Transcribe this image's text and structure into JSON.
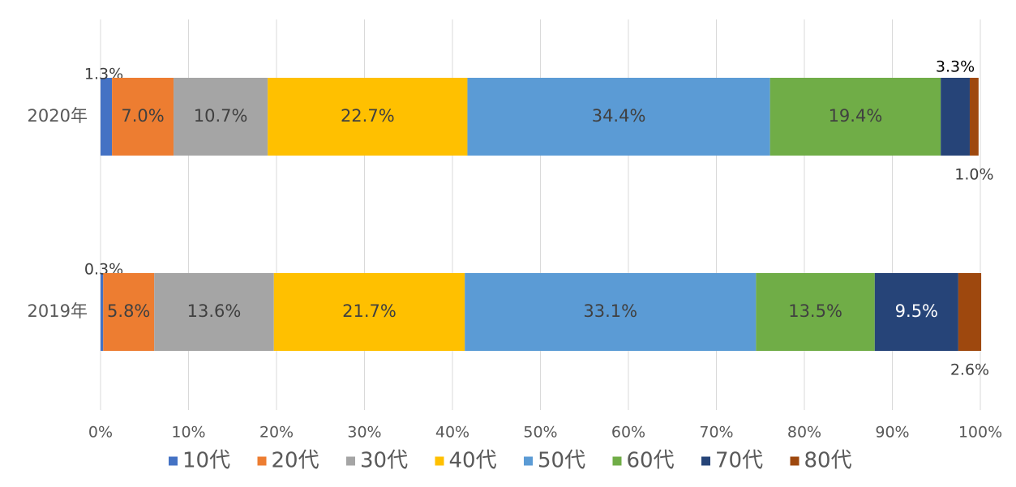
{
  "chart_data": {
    "type": "bar",
    "orientation": "horizontal",
    "stacking": "percent",
    "categories": [
      "2020年",
      "2019年"
    ],
    "series": [
      {
        "name": "10代",
        "color": "#4472c4",
        "values": [
          1.3,
          0.3
        ],
        "labels": [
          "1.3%",
          "0.3%"
        ]
      },
      {
        "name": "20代",
        "color": "#ed7d31",
        "values": [
          7.0,
          5.8
        ],
        "labels": [
          "7.0%",
          "5.8%"
        ]
      },
      {
        "name": "30代",
        "color": "#a5a5a5",
        "values": [
          10.7,
          13.6
        ],
        "labels": [
          "10.7%",
          "13.6%"
        ]
      },
      {
        "name": "40代",
        "color": "#ffc000",
        "values": [
          22.7,
          21.7
        ],
        "labels": [
          "22.7%",
          "21.7%"
        ]
      },
      {
        "name": "50代",
        "color": "#5b9bd5",
        "values": [
          34.4,
          33.1
        ],
        "labels": [
          "34.4%",
          "33.1%"
        ]
      },
      {
        "name": "60代",
        "color": "#70ad47",
        "values": [
          19.4,
          13.5
        ],
        "labels": [
          "19.4%",
          "13.5%"
        ]
      },
      {
        "name": "70代",
        "color": "#264478",
        "values": [
          3.3,
          9.5
        ],
        "labels": [
          "3.3%",
          "9.5%"
        ]
      },
      {
        "name": "80代",
        "color": "#9e480e",
        "values": [
          1.0,
          2.6
        ],
        "labels": [
          "1.0%",
          "2.6%"
        ]
      }
    ],
    "x_ticks": [
      "0%",
      "10%",
      "20%",
      "30%",
      "40%",
      "50%",
      "60%",
      "70%",
      "80%",
      "90%",
      "100%"
    ],
    "xlim": [
      0,
      100
    ],
    "grid": true,
    "legend": "bottom",
    "title": "",
    "xlabel": "",
    "ylabel": ""
  }
}
